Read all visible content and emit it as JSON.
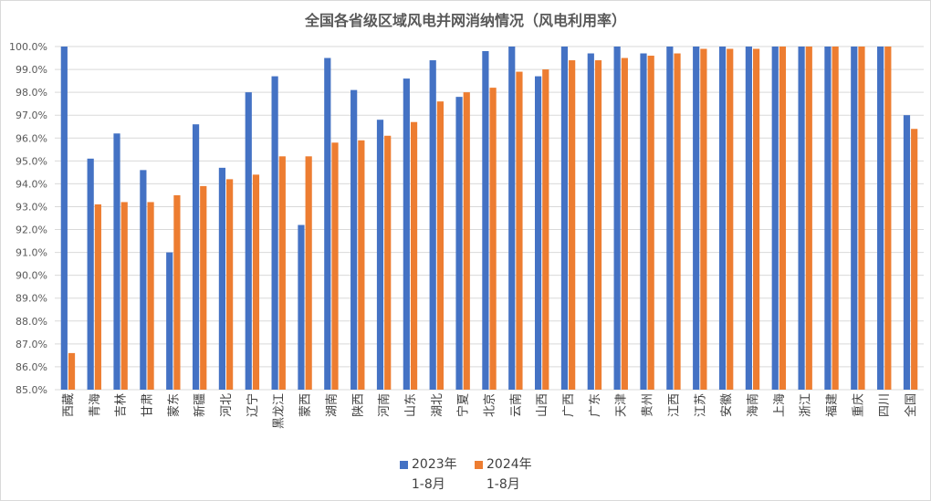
{
  "chart_data": {
    "type": "bar",
    "title": "全国各省级区域风电并网消纳情况（风电利用率）",
    "ylim": [
      85,
      100
    ],
    "ytick_step": 1,
    "y_tick_format": "percent_1dp",
    "grid": "horizontal",
    "legend_position": "bottom",
    "categories": [
      "西藏",
      "青海",
      "吉林",
      "甘肃",
      "蒙东",
      "新疆",
      "河北",
      "辽宁",
      "黑龙江",
      "蒙西",
      "湖南",
      "陕西",
      "河南",
      "山东",
      "湖北",
      "宁夏",
      "北京",
      "云南",
      "山西",
      "广西",
      "广东",
      "天津",
      "贵州",
      "江西",
      "江苏",
      "安徽",
      "海南",
      "上海",
      "浙江",
      "福建",
      "重庆",
      "四川",
      "全国"
    ],
    "series": [
      {
        "name": "2023年 1-8月",
        "name_line1": "2023年",
        "name_line2": "1-8月",
        "color": "#4472c4",
        "values": [
          100.0,
          95.1,
          96.2,
          94.6,
          91.0,
          96.6,
          94.7,
          98.0,
          98.7,
          92.2,
          99.5,
          98.1,
          96.8,
          98.6,
          99.4,
          97.8,
          99.8,
          100.0,
          98.7,
          100.0,
          99.7,
          100.0,
          99.7,
          100.0,
          100.0,
          100.0,
          100.0,
          100.0,
          100.0,
          100.0,
          100.0,
          100.0,
          97.0
        ]
      },
      {
        "name": "2024年 1-8月",
        "name_line1": "2024年",
        "name_line2": "1-8月",
        "color": "#ed7d31",
        "values": [
          86.6,
          93.1,
          93.2,
          93.2,
          93.5,
          93.9,
          94.2,
          94.4,
          95.2,
          95.2,
          95.8,
          95.9,
          96.1,
          96.7,
          97.6,
          98.0,
          98.2,
          98.9,
          99.0,
          99.4,
          99.4,
          99.5,
          99.6,
          99.7,
          99.9,
          99.9,
          99.9,
          100.0,
          100.0,
          100.0,
          100.0,
          100.0,
          96.4
        ]
      }
    ]
  }
}
